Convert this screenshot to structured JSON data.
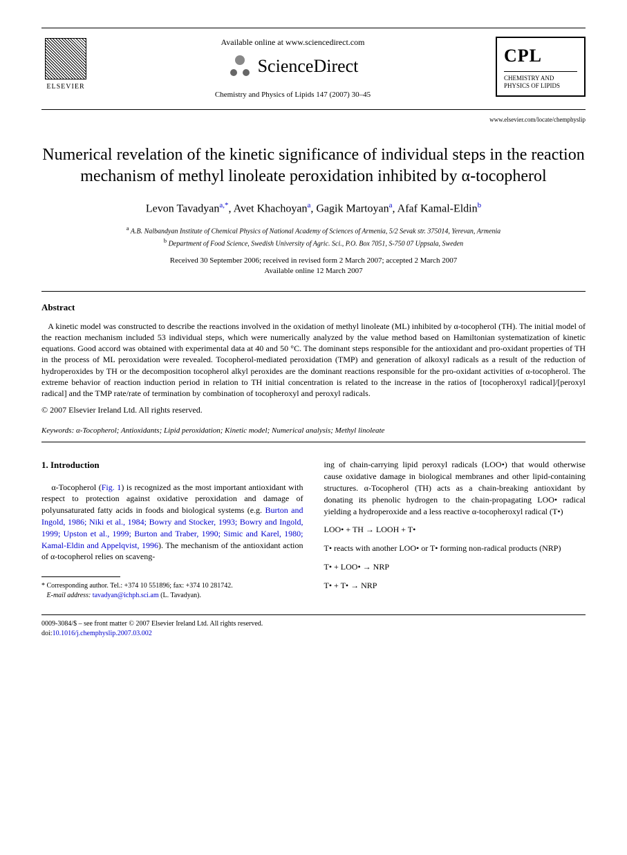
{
  "header": {
    "elsevier": "ELSEVIER",
    "available": "Available online at www.sciencedirect.com",
    "sd_name": "ScienceDirect",
    "journal_ref": "Chemistry and Physics of Lipids 147 (2007) 30–45",
    "cpl_big": "CPL",
    "cpl_line1": "CHEMISTRY AND",
    "cpl_line2": "PHYSICS OF LIPIDS",
    "journal_url": "www.elsevier.com/locate/chemphyslip"
  },
  "title": "Numerical revelation of the kinetic significance of individual steps in the reaction mechanism of methyl linoleate peroxidation inhibited by α-tocopherol",
  "authors": {
    "a1": "Levon Tavadyan",
    "a1_sup": "a,*",
    "a2": "Avet Khachoyan",
    "a2_sup": "a",
    "a3": "Gagik Martoyan",
    "a3_sup": "a",
    "a4": "Afaf Kamal-Eldin",
    "a4_sup": "b"
  },
  "affiliations": {
    "a": "A.B. Nalbandyan Institute of Chemical Physics of National Academy of Sciences of Armenia, 5/2 Sevak str. 375014, Yerevan, Armenia",
    "b": "Department of Food Science, Swedish University of Agric. Sci., P.O. Box 7051, S-750 07 Uppsala, Sweden"
  },
  "dates": {
    "line1": "Received 30 September 2006; received in revised form 2 March 2007; accepted 2 March 2007",
    "line2": "Available online 12 March 2007"
  },
  "abstract": {
    "heading": "Abstract",
    "body": "A kinetic model was constructed to describe the reactions involved in the oxidation of methyl linoleate (ML) inhibited by α-tocopherol (TH). The initial model of the reaction mechanism included 53 individual steps, which were numerically analyzed by the value method based on Hamiltonian systematization of kinetic equations. Good accord was obtained with experimental data at 40 and 50 °C. The dominant steps responsible for the antioxidant and pro-oxidant properties of TH in the process of ML peroxidation were revealed. Tocopherol-mediated peroxidation (TMP) and generation of alkoxyl radicals as a result of the reduction of hydroperoxides by TH or the decomposition tocopherol alkyl peroxides are the dominant reactions responsible for the pro-oxidant activities of α-tocopherol. The extreme behavior of reaction induction period in relation to TH initial concentration is related to the increase in the ratios of [tocopheroxyl radical]/[peroxyl radical] and the TMP rate/rate of termination by combination of tocopheroxyl and peroxyl radicals.",
    "copyright": "© 2007 Elsevier Ireland Ltd. All rights reserved."
  },
  "keywords": {
    "label": "Keywords:",
    "list": "α-Tocopherol; Antioxidants; Lipid peroxidation; Kinetic model; Numerical analysis; Methyl linoleate"
  },
  "introduction": {
    "heading": "1. Introduction",
    "p1_pre": "α-Tocopherol (",
    "p1_fig": "Fig. 1",
    "p1_mid": ") is recognized as the most important antioxidant with respect to protection against oxidative peroxidation and damage of polyunsaturated fatty acids in foods and biological systems (e.g. ",
    "p1_refs": "Burton and Ingold, 1986; Niki et al., 1984; Bowry and Stocker, 1993; Bowry and Ingold, 1999; Upston et al., 1999; Burton and Traber, 1990; Simic and Karel, 1980; Kamal-Eldin and Appelqvist, 1996",
    "p1_post": "). The mechanism of the antioxidant action of α-tocopherol relies on scaveng-",
    "p2": "ing of chain-carrying lipid peroxyl radicals (LOO•) that would otherwise cause oxidative damage in biological membranes and other lipid-containing structures. α-Tocopherol (TH) acts as a chain-breaking antioxidant by donating its phenolic hydrogen to the chain-propagating LOO• radical yielding a hydroperoxide and a less reactive α-tocopheroxyl radical (T•)",
    "eq1": "LOO• + TH → LOOH + T•",
    "p3": "T• reacts with another LOO• or T• forming non-radical products (NRP)",
    "eq2": "T• + LOO• → NRP",
    "eq3": "T• + T• → NRP"
  },
  "footnote": {
    "corr": "* Corresponding author. Tel.: +374 10 551896; fax: +374 10 281742.",
    "email_label": "E-mail address:",
    "email": "tavadyan@ichph.sci.am",
    "email_post": "(L. Tavadyan)."
  },
  "bottom": {
    "issn": "0009-3084/$ – see front matter © 2007 Elsevier Ireland Ltd. All rights reserved.",
    "doi_label": "doi:",
    "doi": "10.1016/j.chemphyslip.2007.03.002"
  }
}
